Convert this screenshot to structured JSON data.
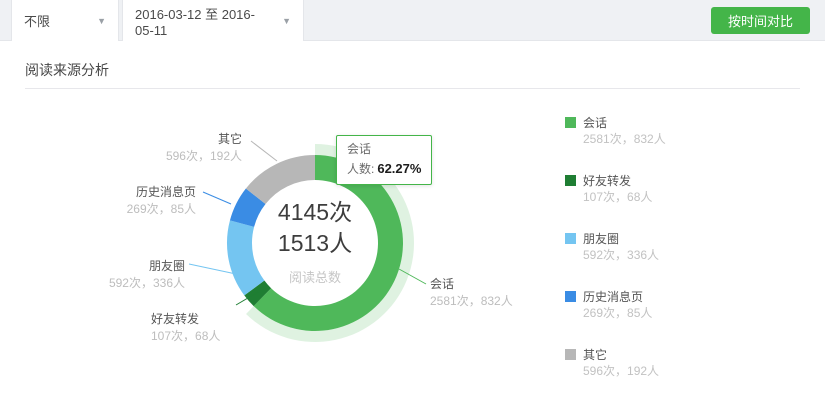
{
  "colors": {
    "accent": "#44b549"
  },
  "toolbar": {
    "filter_label": "不限",
    "date_range": "2016-03-12 至 2016-05-11",
    "compare_button": "按时间对比"
  },
  "section": {
    "title": "阅读来源分析"
  },
  "tooltip": {
    "series": "会话",
    "metric": "人数:",
    "value": "62.27%"
  },
  "chart_data": {
    "type": "pie",
    "subtype": "donut",
    "title": "阅读来源分析",
    "center": {
      "reads": "4145次",
      "people": "1513人",
      "caption": "阅读总数"
    },
    "totals": {
      "reads": 4145,
      "people": 1513
    },
    "unit_reads": "次",
    "unit_people": "人",
    "start_angle_deg": 0,
    "clockwise": true,
    "legend_position": "right",
    "selected_index": 0,
    "selected_tooltip_percent": "62.27%",
    "series": [
      {
        "name": "会话",
        "reads": 2581,
        "people": 832,
        "reads_pct": 62.27,
        "display": "2581次，832人",
        "color": "#4fb85a"
      },
      {
        "name": "好友转发",
        "reads": 107,
        "people": 68,
        "reads_pct": 2.58,
        "display": "107次，68人",
        "color": "#1f7e33"
      },
      {
        "name": "朋友圈",
        "reads": 592,
        "people": 336,
        "reads_pct": 14.28,
        "display": "592次，336人",
        "color": "#74c5f1"
      },
      {
        "name": "历史消息页",
        "reads": 269,
        "people": 85,
        "reads_pct": 6.49,
        "display": "269次，85人",
        "color": "#3a8ce4"
      },
      {
        "name": "其它",
        "reads": 596,
        "people": 192,
        "reads_pct": 14.38,
        "display": "596次，192人",
        "color": "#b7b7b7"
      }
    ]
  }
}
